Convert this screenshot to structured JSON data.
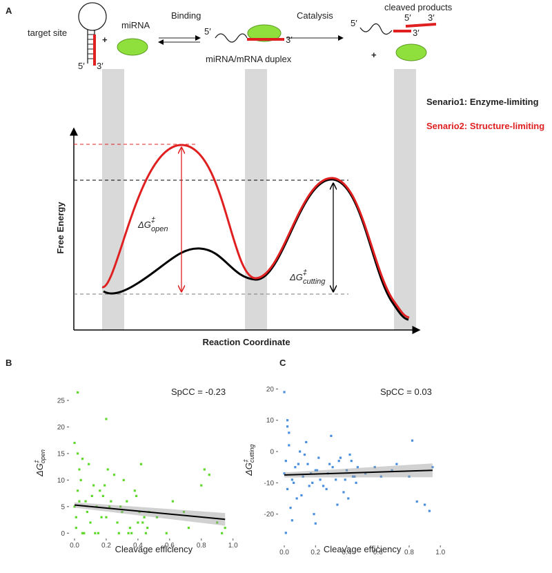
{
  "panel_a": {
    "letter": "A",
    "target_site": "target site",
    "mirna": "miRNA",
    "binding": "Binding",
    "catalysis": "Catalysis",
    "cleaved_products": "cleaved products",
    "duplex": "miRNA/mRNA duplex",
    "prime5": "5′",
    "prime3": "3′",
    "plus": "+",
    "scenario1": "Senario1: Enzyme-limiting",
    "scenario2": "Senario2: Structure-limiting",
    "y_axis": "Free Energy",
    "x_axis": "Reaction Coordinate",
    "dg_open": {
      "symbol": "ΔG",
      "sup": "‡",
      "sub": "open"
    },
    "dg_cutting": {
      "symbol": "ΔG",
      "sup": "‡",
      "sub": "cutting"
    }
  },
  "chart_data": [
    {
      "type": "scatter",
      "letter": "B",
      "annotation": "SpCC = -0.23",
      "xlabel": "Cleavage efficiency",
      "ylabel": {
        "symbol": "ΔG",
        "sup": "‡",
        "sub": "open"
      },
      "color": "#5fd92a",
      "x": [
        0,
        0.01,
        0.02,
        0.03,
        0.05,
        0.07,
        0.08,
        0.1,
        0.12,
        0.15,
        0.18,
        0.2,
        0.22,
        0.25,
        0.28,
        0.3,
        0.33,
        0.35,
        0.38,
        0.4,
        0.42,
        0.45,
        0.47,
        0,
        0.02,
        0.04,
        0.06,
        0.09,
        0.11,
        0.14,
        0.17,
        0.19,
        0.23,
        0.27,
        0.31,
        0.36,
        0.41,
        0.44,
        0.01,
        0.03,
        0.05,
        0.13,
        0.16,
        0.21,
        0.29,
        0.34,
        0.39,
        0.43,
        0.46,
        0.52,
        0.58,
        0.62,
        0.69,
        0.72,
        0.8,
        0.82,
        0.85,
        0.9,
        0.93,
        0.95,
        0.02,
        0.2
      ],
      "values": [
        5,
        3,
        8,
        12,
        0,
        6,
        4,
        2,
        9,
        0,
        7,
        3,
        5,
        11,
        0,
        4,
        6,
        1,
        8,
        2,
        13,
        0,
        4,
        17,
        15,
        10,
        0,
        13,
        7,
        5,
        3,
        9,
        6,
        2,
        10,
        0,
        4,
        3,
        1,
        6,
        14,
        0,
        8,
        12,
        5,
        0,
        7,
        2,
        1,
        3,
        0,
        6,
        4,
        1,
        9,
        12,
        11,
        2,
        0,
        1,
        26.5,
        21.5
      ],
      "fit_x": [
        0,
        0.95
      ],
      "fit_y": [
        5.3,
        2.6
      ],
      "fit_lower": [
        4.8,
        1.4
      ],
      "fit_upper": [
        5.8,
        3.8
      ],
      "xlim": [
        -0.035,
        1.01
      ],
      "ylim": [
        -1,
        27.6
      ],
      "xticks": [
        {
          "value": 0,
          "label": "0.0"
        },
        0.2,
        0.4,
        0.6,
        0.8,
        {
          "value": 1,
          "label": "1.0"
        }
      ],
      "yticks": [
        0,
        5,
        10,
        15,
        20,
        25
      ]
    },
    {
      "type": "scatter",
      "letter": "C",
      "annotation": "SpCC = 0.03",
      "xlabel": "Cleavage efficiency",
      "ylabel": {
        "symbol": "ΔG",
        "sup": "‡",
        "sub": "cutting"
      },
      "color": "#4a8fdf",
      "x": [
        0,
        0.01,
        0.02,
        0.03,
        0.05,
        0.07,
        0.08,
        0.1,
        0.12,
        0.15,
        0.18,
        0.2,
        0.22,
        0.25,
        0.28,
        0.3,
        0.33,
        0.35,
        0.38,
        0.4,
        0.42,
        0.45,
        0.47,
        0,
        0.02,
        0.04,
        0.06,
        0.09,
        0.11,
        0.14,
        0.17,
        0.19,
        0.23,
        0.27,
        0.31,
        0.36,
        0.41,
        0.44,
        0.01,
        0.03,
        0.05,
        0.13,
        0.16,
        0.21,
        0.29,
        0.34,
        0.39,
        0.43,
        0.46,
        0.52,
        0.58,
        0.62,
        0.69,
        0.72,
        0.8,
        0.82,
        0.85,
        0.9,
        0.93,
        0.95,
        0.02,
        0.2
      ],
      "values": [
        -7,
        -3,
        -12,
        2,
        -9,
        -5,
        -15,
        0,
        -8,
        -4,
        -10,
        -6,
        -2,
        -11,
        -7,
        5,
        -9,
        -3,
        -13,
        -6,
        -1,
        -8,
        -5,
        19,
        8,
        -18,
        -10,
        -4,
        -14,
        3,
        -7,
        -20,
        -9,
        -12,
        -5,
        -2,
        -15,
        -8,
        -26,
        6,
        -22,
        -1,
        -11,
        -6,
        -4,
        -17,
        -9,
        -3,
        -10,
        -7,
        -5,
        -8,
        -6,
        -4,
        -8,
        3.5,
        -16,
        -17,
        -19,
        -5,
        10,
        -23
      ],
      "fit_x": [
        0,
        0.95
      ],
      "fit_y": [
        -7.5,
        -6
      ],
      "fit_lower": [
        -8.3,
        -8.2
      ],
      "fit_upper": [
        -6.7,
        -3.8
      ],
      "xlim": [
        -0.04,
        1.03
      ],
      "ylim": [
        -30,
        23.4
      ],
      "xticks": [
        {
          "value": 0,
          "label": "0.0"
        },
        0.2,
        0.4,
        0.6,
        0.8,
        {
          "value": 1,
          "label": "1.0"
        }
      ],
      "yticks": [
        -20,
        -10,
        0,
        10,
        20
      ]
    }
  ]
}
